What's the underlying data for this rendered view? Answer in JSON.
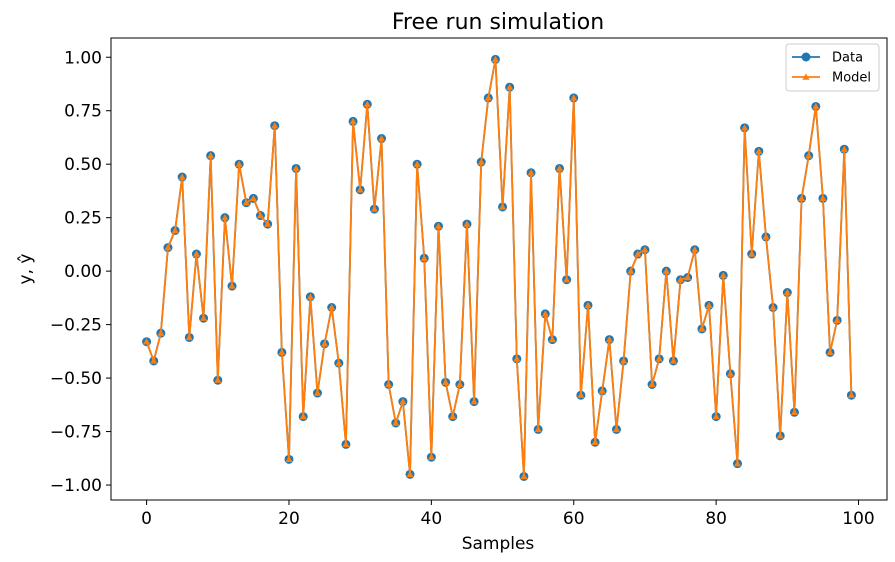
{
  "chart_data": {
    "type": "line",
    "title": "Free run simulation",
    "xlabel": "Samples",
    "ylabel": "y, ŷ",
    "xlim": [
      -5,
      104
    ],
    "ylim": [
      -1.07,
      1.09
    ],
    "xticks": [
      0,
      20,
      40,
      60,
      80,
      100
    ],
    "xtick_labels": [
      "0",
      "20",
      "40",
      "60",
      "80",
      "100"
    ],
    "yticks": [
      -1.0,
      -0.75,
      -0.5,
      -0.25,
      0.0,
      0.25,
      0.5,
      0.75,
      1.0
    ],
    "ytick_labels": [
      "−1.00",
      "−0.75",
      "−0.50",
      "−0.25",
      "0.00",
      "0.25",
      "0.50",
      "0.75",
      "1.00"
    ],
    "grid": false,
    "legend_position": "top-right",
    "x": [
      0,
      1,
      2,
      3,
      4,
      5,
      6,
      7,
      8,
      9,
      10,
      11,
      12,
      13,
      14,
      15,
      16,
      17,
      18,
      19,
      20,
      21,
      22,
      23,
      24,
      25,
      26,
      27,
      28,
      29,
      30,
      31,
      32,
      33,
      34,
      35,
      36,
      37,
      38,
      39,
      40,
      41,
      42,
      43,
      44,
      45,
      46,
      47,
      48,
      49,
      50,
      51,
      52,
      53,
      54,
      55,
      56,
      57,
      58,
      59,
      60,
      61,
      62,
      63,
      64,
      65,
      66,
      67,
      68,
      69,
      70,
      71,
      72,
      73,
      74,
      75,
      76,
      77,
      78,
      79,
      80,
      81,
      82,
      83,
      84,
      85,
      86,
      87,
      88,
      89,
      90,
      91,
      92,
      93,
      94,
      95,
      96,
      97,
      98,
      99
    ],
    "series": [
      {
        "name": "Data",
        "color": "#1f77b4",
        "marker": "circle",
        "values": [
          -0.33,
          -0.42,
          -0.29,
          0.11,
          0.19,
          0.44,
          -0.31,
          0.08,
          -0.22,
          0.54,
          -0.51,
          0.25,
          -0.07,
          0.5,
          0.32,
          0.34,
          0.26,
          0.22,
          0.68,
          -0.38,
          -0.88,
          0.48,
          -0.68,
          -0.12,
          -0.57,
          -0.34,
          -0.17,
          -0.43,
          -0.81,
          0.7,
          0.38,
          0.78,
          0.29,
          0.62,
          -0.53,
          -0.71,
          -0.61,
          -0.95,
          0.5,
          0.06,
          -0.87,
          0.21,
          -0.52,
          -0.68,
          -0.53,
          0.22,
          -0.61,
          0.51,
          0.81,
          0.99,
          0.3,
          0.86,
          -0.41,
          -0.96,
          0.46,
          -0.74,
          -0.2,
          -0.32,
          0.48,
          -0.04,
          0.81,
          -0.58,
          -0.16,
          -0.8,
          -0.56,
          -0.32,
          -0.74,
          -0.42,
          0.0,
          0.08,
          0.1,
          -0.53,
          -0.41,
          0.0,
          -0.42,
          -0.04,
          -0.03,
          0.1,
          -0.27,
          -0.16,
          -0.68,
          -0.02,
          -0.48,
          -0.9,
          0.67,
          0.08,
          0.56,
          0.16,
          -0.17,
          -0.77,
          -0.1,
          -0.66,
          0.34,
          0.54,
          0.77,
          0.34,
          -0.38,
          -0.23,
          0.57,
          -0.58
        ]
      },
      {
        "name": "Model",
        "color": "#ff7f0e",
        "marker": "triangle",
        "values": [
          -0.33,
          -0.42,
          -0.29,
          0.11,
          0.19,
          0.44,
          -0.31,
          0.08,
          -0.22,
          0.54,
          -0.51,
          0.25,
          -0.07,
          0.5,
          0.32,
          0.34,
          0.26,
          0.22,
          0.68,
          -0.38,
          -0.88,
          0.48,
          -0.68,
          -0.12,
          -0.57,
          -0.34,
          -0.17,
          -0.43,
          -0.81,
          0.7,
          0.38,
          0.78,
          0.29,
          0.62,
          -0.53,
          -0.71,
          -0.61,
          -0.95,
          0.5,
          0.06,
          -0.87,
          0.21,
          -0.52,
          -0.68,
          -0.53,
          0.22,
          -0.61,
          0.51,
          0.81,
          0.99,
          0.3,
          0.86,
          -0.41,
          -0.96,
          0.46,
          -0.74,
          -0.2,
          -0.32,
          0.48,
          -0.04,
          0.81,
          -0.58,
          -0.16,
          -0.8,
          -0.56,
          -0.32,
          -0.74,
          -0.42,
          0.0,
          0.08,
          0.1,
          -0.53,
          -0.41,
          0.0,
          -0.42,
          -0.04,
          -0.03,
          0.1,
          -0.27,
          -0.16,
          -0.68,
          -0.02,
          -0.48,
          -0.9,
          0.67,
          0.08,
          0.56,
          0.16,
          -0.17,
          -0.77,
          -0.1,
          -0.66,
          0.34,
          0.54,
          0.77,
          0.34,
          -0.38,
          -0.23,
          0.57,
          -0.58
        ]
      }
    ]
  }
}
